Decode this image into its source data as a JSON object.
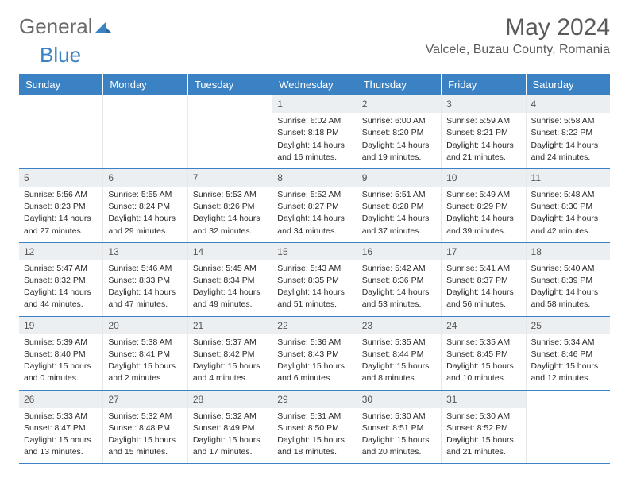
{
  "logo": {
    "general": "General",
    "blue": "Blue"
  },
  "title": "May 2024",
  "location": "Valcele, Buzau County, Romania",
  "colors": {
    "header_bg": "#3b82c4",
    "header_text": "#ffffff",
    "daynum_bg": "#eceff1",
    "daynum_text": "#555555",
    "body_text": "#2a2a2a",
    "title_text": "#5a5a5a",
    "row_divider": "#3b82c4"
  },
  "weekdays": [
    "Sunday",
    "Monday",
    "Tuesday",
    "Wednesday",
    "Thursday",
    "Friday",
    "Saturday"
  ],
  "layout": {
    "columns": 7,
    "rows": 5,
    "blank_leading_cells": 3
  },
  "days": [
    {
      "n": "1",
      "sunrise": "6:02 AM",
      "sunset": "8:18 PM",
      "dh": "14",
      "dm": "16"
    },
    {
      "n": "2",
      "sunrise": "6:00 AM",
      "sunset": "8:20 PM",
      "dh": "14",
      "dm": "19"
    },
    {
      "n": "3",
      "sunrise": "5:59 AM",
      "sunset": "8:21 PM",
      "dh": "14",
      "dm": "21"
    },
    {
      "n": "4",
      "sunrise": "5:58 AM",
      "sunset": "8:22 PM",
      "dh": "14",
      "dm": "24"
    },
    {
      "n": "5",
      "sunrise": "5:56 AM",
      "sunset": "8:23 PM",
      "dh": "14",
      "dm": "27"
    },
    {
      "n": "6",
      "sunrise": "5:55 AM",
      "sunset": "8:24 PM",
      "dh": "14",
      "dm": "29"
    },
    {
      "n": "7",
      "sunrise": "5:53 AM",
      "sunset": "8:26 PM",
      "dh": "14",
      "dm": "32"
    },
    {
      "n": "8",
      "sunrise": "5:52 AM",
      "sunset": "8:27 PM",
      "dh": "14",
      "dm": "34"
    },
    {
      "n": "9",
      "sunrise": "5:51 AM",
      "sunset": "8:28 PM",
      "dh": "14",
      "dm": "37"
    },
    {
      "n": "10",
      "sunrise": "5:49 AM",
      "sunset": "8:29 PM",
      "dh": "14",
      "dm": "39"
    },
    {
      "n": "11",
      "sunrise": "5:48 AM",
      "sunset": "8:30 PM",
      "dh": "14",
      "dm": "42"
    },
    {
      "n": "12",
      "sunrise": "5:47 AM",
      "sunset": "8:32 PM",
      "dh": "14",
      "dm": "44"
    },
    {
      "n": "13",
      "sunrise": "5:46 AM",
      "sunset": "8:33 PM",
      "dh": "14",
      "dm": "47"
    },
    {
      "n": "14",
      "sunrise": "5:45 AM",
      "sunset": "8:34 PM",
      "dh": "14",
      "dm": "49"
    },
    {
      "n": "15",
      "sunrise": "5:43 AM",
      "sunset": "8:35 PM",
      "dh": "14",
      "dm": "51"
    },
    {
      "n": "16",
      "sunrise": "5:42 AM",
      "sunset": "8:36 PM",
      "dh": "14",
      "dm": "53"
    },
    {
      "n": "17",
      "sunrise": "5:41 AM",
      "sunset": "8:37 PM",
      "dh": "14",
      "dm": "56"
    },
    {
      "n": "18",
      "sunrise": "5:40 AM",
      "sunset": "8:39 PM",
      "dh": "14",
      "dm": "58"
    },
    {
      "n": "19",
      "sunrise": "5:39 AM",
      "sunset": "8:40 PM",
      "dh": "15",
      "dm": "0"
    },
    {
      "n": "20",
      "sunrise": "5:38 AM",
      "sunset": "8:41 PM",
      "dh": "15",
      "dm": "2"
    },
    {
      "n": "21",
      "sunrise": "5:37 AM",
      "sunset": "8:42 PM",
      "dh": "15",
      "dm": "4"
    },
    {
      "n": "22",
      "sunrise": "5:36 AM",
      "sunset": "8:43 PM",
      "dh": "15",
      "dm": "6"
    },
    {
      "n": "23",
      "sunrise": "5:35 AM",
      "sunset": "8:44 PM",
      "dh": "15",
      "dm": "8"
    },
    {
      "n": "24",
      "sunrise": "5:35 AM",
      "sunset": "8:45 PM",
      "dh": "15",
      "dm": "10"
    },
    {
      "n": "25",
      "sunrise": "5:34 AM",
      "sunset": "8:46 PM",
      "dh": "15",
      "dm": "12"
    },
    {
      "n": "26",
      "sunrise": "5:33 AM",
      "sunset": "8:47 PM",
      "dh": "15",
      "dm": "13"
    },
    {
      "n": "27",
      "sunrise": "5:32 AM",
      "sunset": "8:48 PM",
      "dh": "15",
      "dm": "15"
    },
    {
      "n": "28",
      "sunrise": "5:32 AM",
      "sunset": "8:49 PM",
      "dh": "15",
      "dm": "17"
    },
    {
      "n": "29",
      "sunrise": "5:31 AM",
      "sunset": "8:50 PM",
      "dh": "15",
      "dm": "18"
    },
    {
      "n": "30",
      "sunrise": "5:30 AM",
      "sunset": "8:51 PM",
      "dh": "15",
      "dm": "20"
    },
    {
      "n": "31",
      "sunrise": "5:30 AM",
      "sunset": "8:52 PM",
      "dh": "15",
      "dm": "21"
    }
  ],
  "labels": {
    "sunrise_prefix": "Sunrise: ",
    "sunset_prefix": "Sunset: ",
    "daylight_prefix": "Daylight: ",
    "hours_word": " hours",
    "and_word": "and ",
    "minutes_word": " minutes."
  }
}
